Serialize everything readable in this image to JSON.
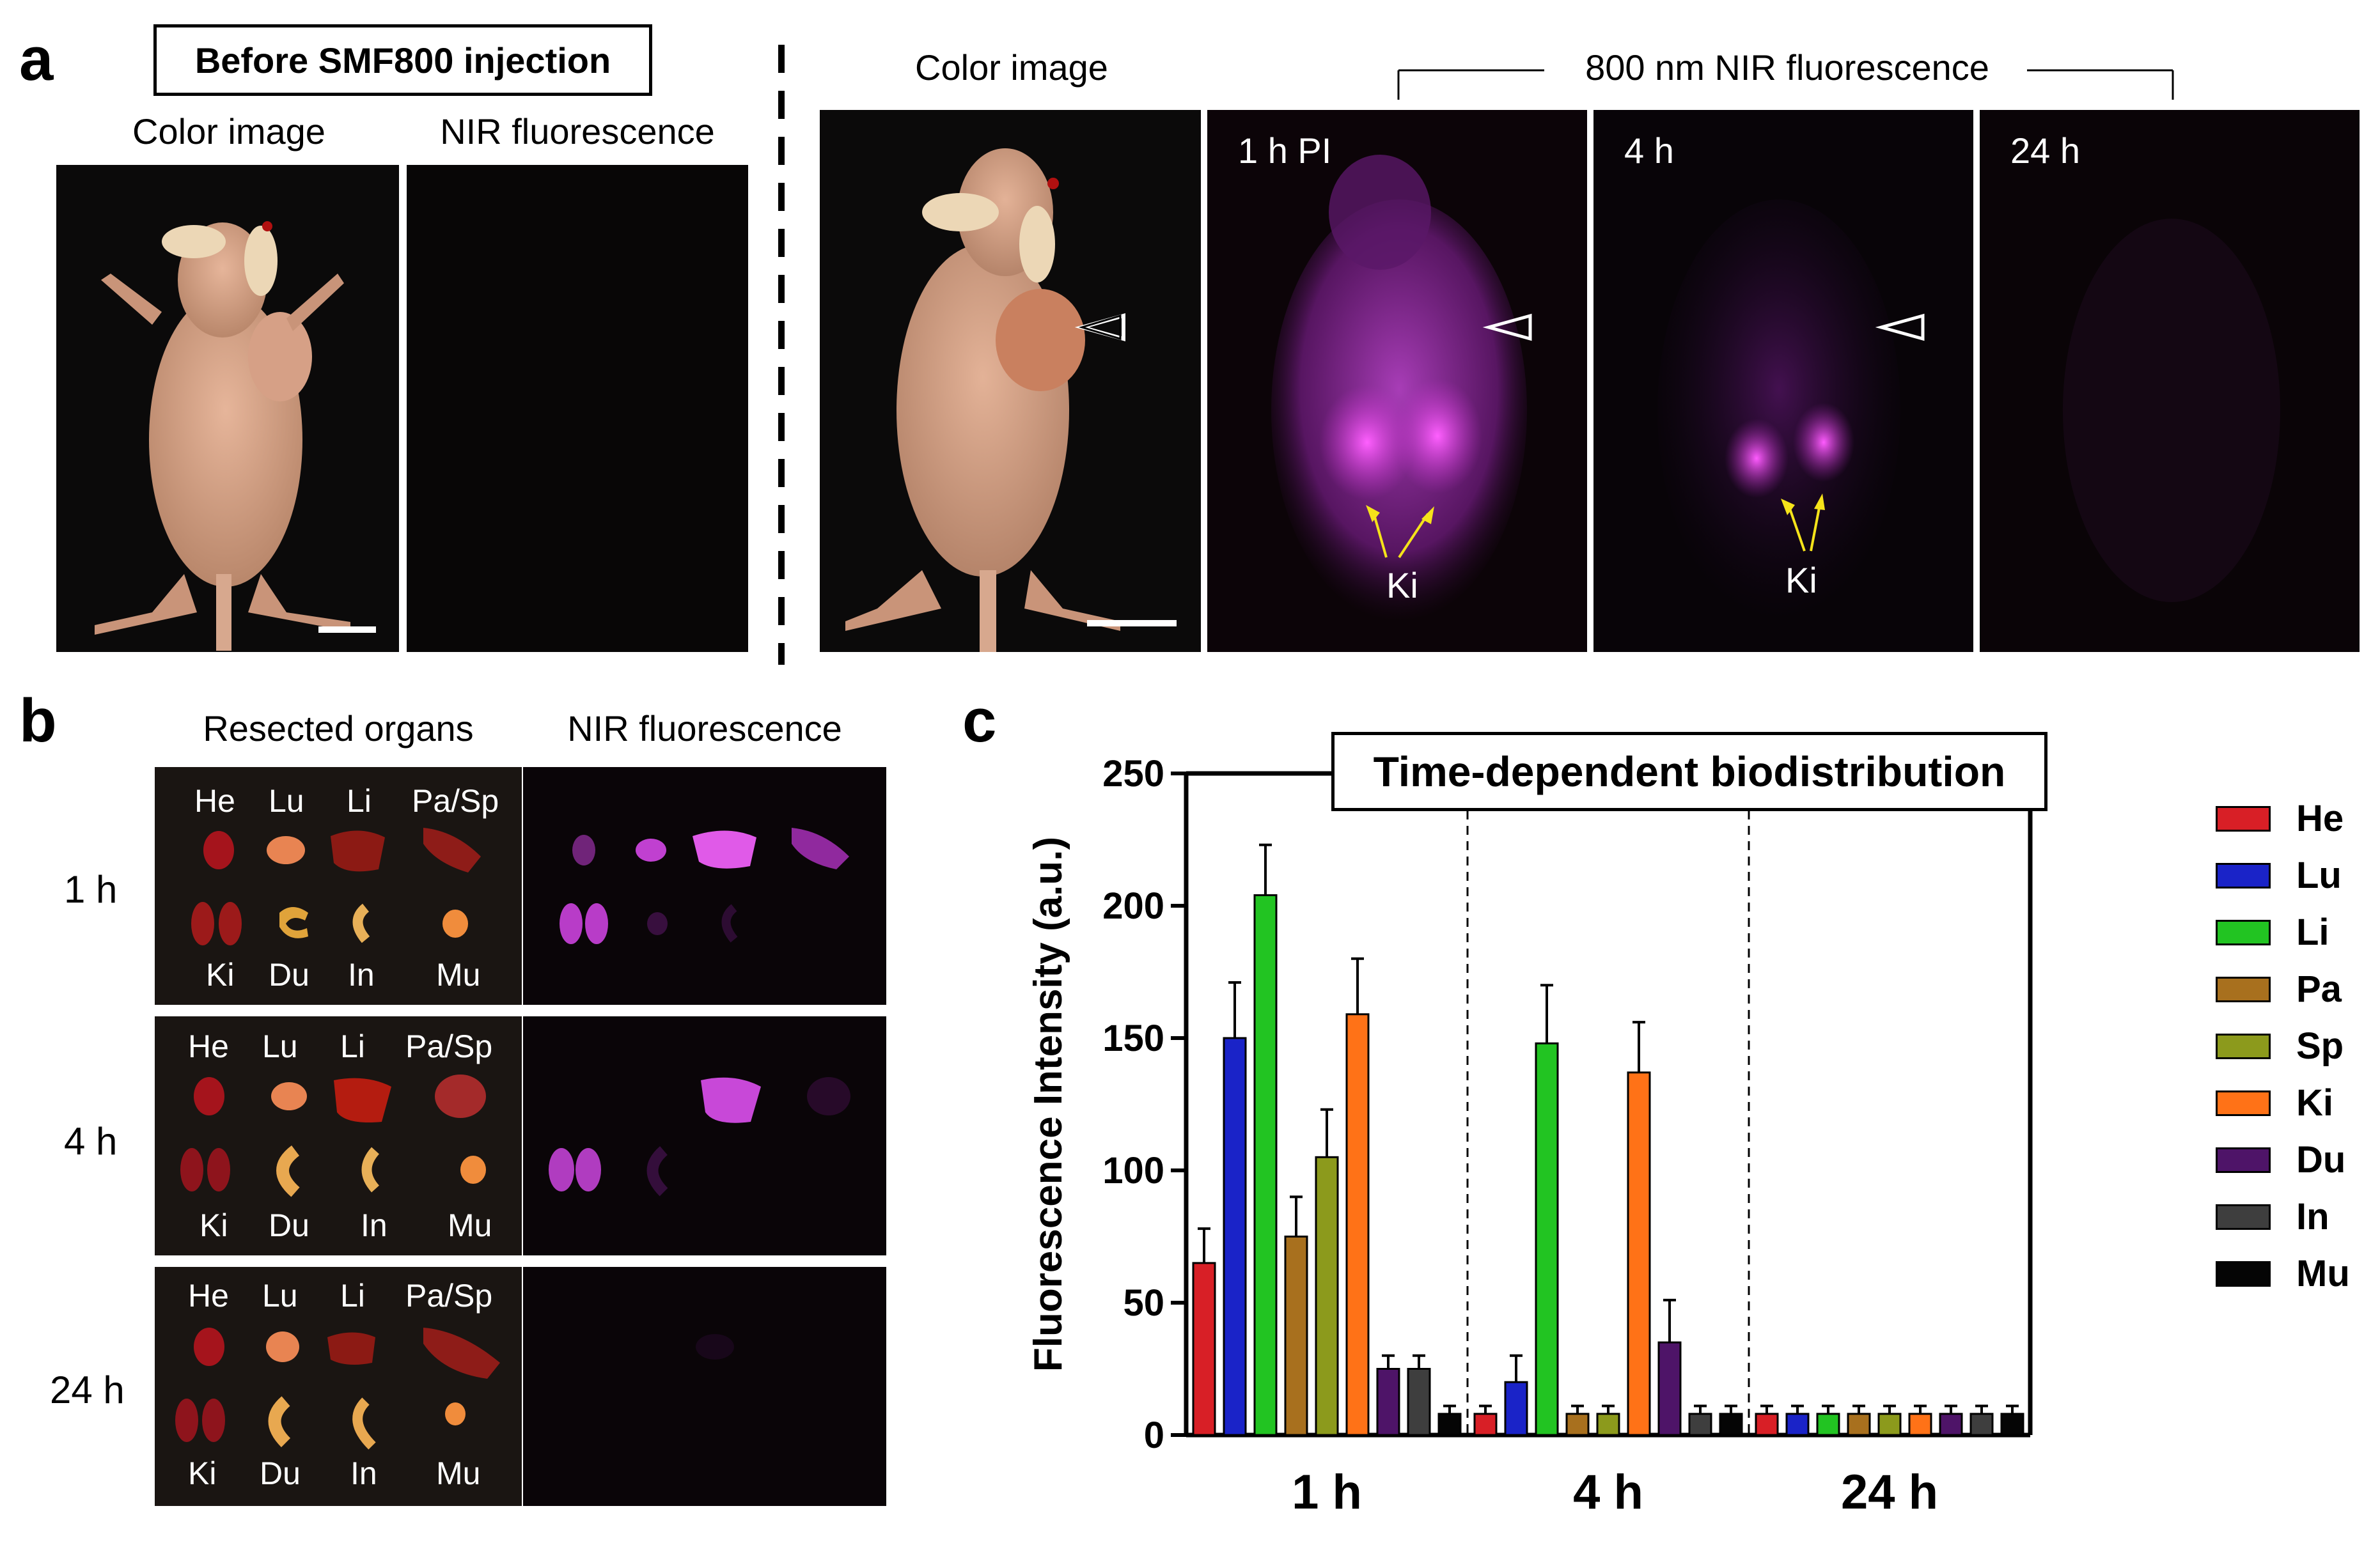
{
  "panel_a": {
    "letter": "a",
    "before_title": "Before SMF800 injection",
    "left_color_label": "Color image",
    "left_nir_label": "NIR fluorescence",
    "right_color_label": "Color image",
    "nir_header": "800 nm NIR fluorescence",
    "time_labels": [
      "1 h PI",
      "4 h",
      "24 h"
    ],
    "kidney_label": "Ki"
  },
  "panel_b": {
    "letter": "b",
    "col_organs": "Resected organs",
    "col_nir": "NIR fluorescence",
    "rows": [
      {
        "time": "1 h",
        "top": [
          "He",
          "Lu",
          "Li",
          "Pa/Sp"
        ],
        "bottom": [
          "Ki",
          "Du",
          "In",
          "Mu"
        ]
      },
      {
        "time": "4 h",
        "top": [
          "He",
          "Lu",
          "Li",
          "Pa/Sp"
        ],
        "bottom": [
          "Ki",
          "Du",
          "In",
          "Mu"
        ]
      },
      {
        "time": "24 h",
        "top": [
          "He",
          "Lu",
          "Li",
          "Pa/Sp"
        ],
        "bottom": [
          "Ki",
          "Du",
          "In",
          "Mu"
        ]
      }
    ]
  },
  "panel_c": {
    "letter": "c"
  },
  "chart_data": {
    "type": "bar",
    "title": "Time-dependent biodistribution",
    "xlabel": "",
    "ylabel": "Fluorescence Intensity (a.u.)",
    "ylim": [
      0,
      250
    ],
    "yticks": [
      0,
      50,
      100,
      150,
      200,
      250
    ],
    "categories": [
      "1 h",
      "4 h",
      "24 h"
    ],
    "series": [
      {
        "name": "He",
        "color": "#d81f26",
        "values": [
          65,
          8,
          8
        ],
        "errors": [
          13,
          3,
          3
        ]
      },
      {
        "name": "Lu",
        "color": "#1a23c8",
        "values": [
          150,
          20,
          8
        ],
        "errors": [
          21,
          10,
          3
        ]
      },
      {
        "name": "Li",
        "color": "#22c422",
        "values": [
          204,
          148,
          8
        ],
        "errors": [
          19,
          22,
          3
        ]
      },
      {
        "name": "Pa",
        "color": "#a8701e",
        "values": [
          75,
          8,
          8
        ],
        "errors": [
          15,
          3,
          3
        ]
      },
      {
        "name": "Sp",
        "color": "#8c9a1c",
        "values": [
          105,
          8,
          8
        ],
        "errors": [
          18,
          3,
          3
        ]
      },
      {
        "name": "Ki",
        "color": "#ff7217",
        "values": [
          159,
          137,
          8
        ],
        "errors": [
          21,
          19,
          3
        ]
      },
      {
        "name": "Du",
        "color": "#4e1468",
        "values": [
          25,
          35,
          8
        ],
        "errors": [
          5,
          16,
          3
        ]
      },
      {
        "name": "In",
        "color": "#3e3e3e",
        "values": [
          25,
          8,
          8
        ],
        "errors": [
          5,
          3,
          3
        ]
      },
      {
        "name": "Mu",
        "color": "#050505",
        "values": [
          8,
          8,
          8
        ],
        "errors": [
          3,
          3,
          3
        ]
      }
    ],
    "legend": "right"
  }
}
